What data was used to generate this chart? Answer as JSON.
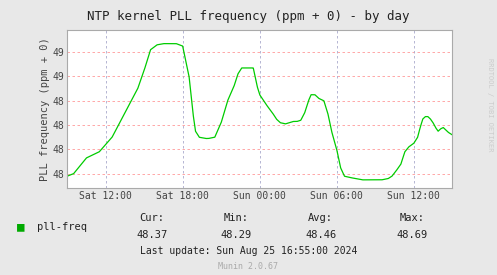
{
  "title": "NTP kernel PLL frequency (ppm + 0) - by day",
  "ylabel": "PLL frequency (ppm + 0)",
  "bg_color": "#e8e8e8",
  "plot_bg_color": "#ffffff",
  "line_color": "#00cc00",
  "grid_color_h": "#ff9999",
  "grid_color_v": "#aaaacc",
  "xtick_labels": [
    "Sat 12:00",
    "Sat 18:00",
    "Sun 00:00",
    "Sun 06:00",
    "Sun 12:00"
  ],
  "legend_label": "pll-freq",
  "legend_color": "#00aa00",
  "stats_cur": "48.37",
  "stats_min": "48.29",
  "stats_avg": "48.46",
  "stats_max": "48.69",
  "last_update": "Last update: Sun Aug 25 16:55:00 2024",
  "munin_version": "Munin 2.0.67",
  "watermark": "RRDTOOL / TOBI OETIKER"
}
